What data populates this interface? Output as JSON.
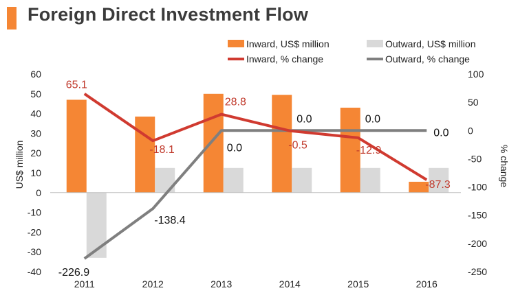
{
  "title": "Foreign Direct Investment Flow",
  "colors": {
    "inward_bar": "#F58634",
    "outward_bar": "#D9D9D9",
    "inward_line": "#D03A30",
    "outward_line": "#7F7F7F",
    "title_accent": "#F58634",
    "text": "#222222",
    "inward_label": "#C0392B"
  },
  "chart_data": {
    "type": "bar",
    "title": "Foreign Direct Investment Flow",
    "categories": [
      "2011",
      "2012",
      "2013",
      "2014",
      "2015",
      "2016"
    ],
    "series": [
      {
        "name": "Inward, US$ million",
        "kind": "bar",
        "axis": "left",
        "values": [
          47,
          38.5,
          50,
          49.5,
          43,
          5.5
        ]
      },
      {
        "name": "Outward, US$ million",
        "kind": "bar",
        "axis": "left",
        "values": [
          -33,
          12.5,
          12.5,
          12.5,
          12.5,
          12.5
        ]
      },
      {
        "name": "Inward, % change",
        "kind": "line",
        "axis": "right",
        "values": [
          65.1,
          -18.1,
          28.8,
          -0.5,
          -12.9,
          -87.3
        ],
        "labels": [
          "65.1",
          "-18.1",
          "28.8",
          "-0.5",
          "-12.9",
          "-87.3"
        ]
      },
      {
        "name": "Outward, % change",
        "kind": "line",
        "axis": "right",
        "values": [
          -226.9,
          -138.4,
          0.0,
          0.0,
          0.0,
          0.0
        ],
        "labels": [
          "-226.9",
          "-138.4",
          "0.0",
          "0.0",
          "0.0",
          "0.0"
        ]
      }
    ],
    "ylabel": "US$ million",
    "y2label": "% change",
    "ylim": [
      -40,
      60
    ],
    "yticks": [
      "60",
      "50",
      "40",
      "30",
      "20",
      "10",
      "0",
      "-10",
      "-20",
      "-30",
      "-40"
    ],
    "y2lim": [
      -250,
      100
    ],
    "y2ticks": [
      "100",
      "50",
      "0",
      "-50",
      "-100",
      "-150",
      "-200",
      "-250"
    ],
    "legend_position": "top-right"
  }
}
